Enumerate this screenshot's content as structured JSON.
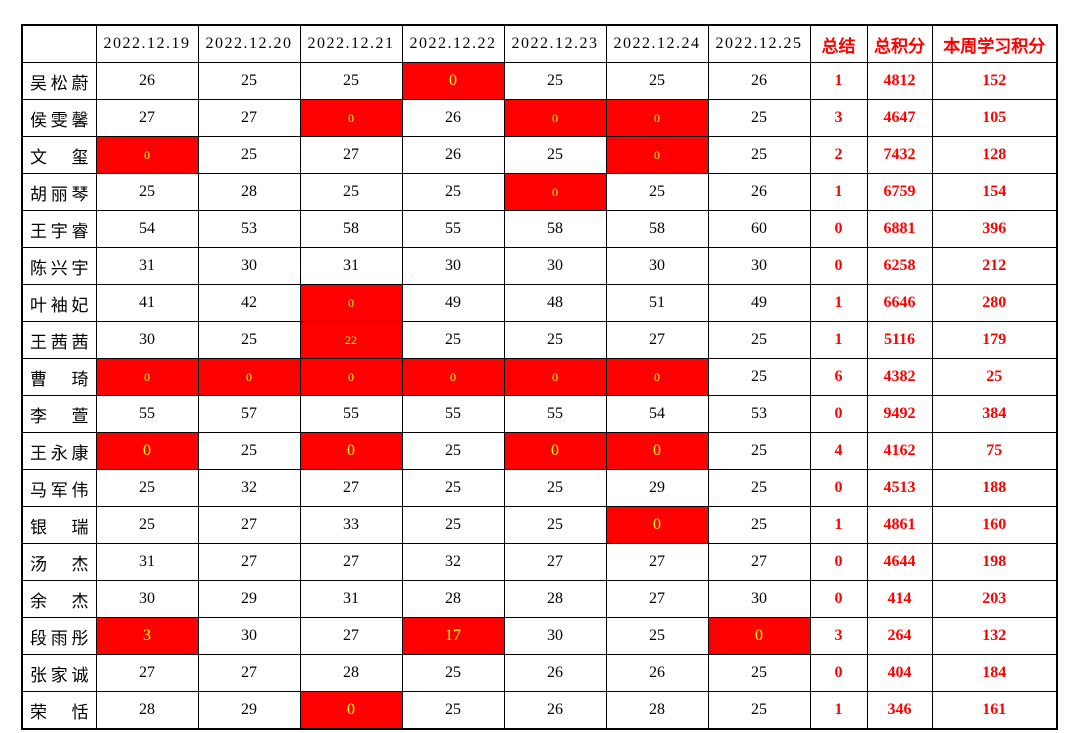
{
  "colors": {
    "highlight_fill": "#ff0000",
    "highlight_text": "#ffff00",
    "accent_red_text": "#ff0000",
    "normal_text": "#000000",
    "border": "#000000",
    "background": "#ffffff"
  },
  "chart_data": {
    "type": "table",
    "columns": [
      "",
      "2022.12.19",
      "2022.12.20",
      "2022.12.21",
      "2022.12.22",
      "2022.12.23",
      "2022.12.24",
      "2022.12.25",
      "总结",
      "总积分",
      "本周学习积分"
    ],
    "rows": [
      {
        "name": "吴松蔚",
        "days": [
          {
            "v": "26"
          },
          {
            "v": "25"
          },
          {
            "v": "25"
          },
          {
            "v": "0",
            "hl": true
          },
          {
            "v": "25"
          },
          {
            "v": "25"
          },
          {
            "v": "26"
          }
        ],
        "summary": "1",
        "total": "4812",
        "week": "152"
      },
      {
        "name": "侯雯馨",
        "days": [
          {
            "v": "27"
          },
          {
            "v": "27"
          },
          {
            "v": "0",
            "hl": true,
            "sm": true
          },
          {
            "v": "26"
          },
          {
            "v": "0",
            "hl": true,
            "sm": true
          },
          {
            "v": "0",
            "hl": true,
            "sm": true
          },
          {
            "v": "25"
          }
        ],
        "summary": "3",
        "total": "4647",
        "week": "105"
      },
      {
        "name": "文玺",
        "days": [
          {
            "v": "0",
            "hl": true,
            "sm": true
          },
          {
            "v": "25"
          },
          {
            "v": "27"
          },
          {
            "v": "26"
          },
          {
            "v": "25"
          },
          {
            "v": "0",
            "hl": true,
            "sm": true
          },
          {
            "v": "25"
          }
        ],
        "summary": "2",
        "total": "7432",
        "week": "128"
      },
      {
        "name": "胡丽琴",
        "days": [
          {
            "v": "25"
          },
          {
            "v": "28"
          },
          {
            "v": "25"
          },
          {
            "v": "25"
          },
          {
            "v": "0",
            "hl": true,
            "sm": true
          },
          {
            "v": "25"
          },
          {
            "v": "26"
          }
        ],
        "summary": "1",
        "total": "6759",
        "week": "154"
      },
      {
        "name": "王宇睿",
        "days": [
          {
            "v": "54"
          },
          {
            "v": "53"
          },
          {
            "v": "58"
          },
          {
            "v": "55"
          },
          {
            "v": "58"
          },
          {
            "v": "58"
          },
          {
            "v": "60"
          }
        ],
        "summary": "0",
        "total": "6881",
        "week": "396"
      },
      {
        "name": "陈兴宇",
        "days": [
          {
            "v": "31"
          },
          {
            "v": "30"
          },
          {
            "v": "31"
          },
          {
            "v": "30"
          },
          {
            "v": "30"
          },
          {
            "v": "30"
          },
          {
            "v": "30"
          }
        ],
        "summary": "0",
        "total": "6258",
        "week": "212"
      },
      {
        "name": "叶袖妃",
        "days": [
          {
            "v": "41"
          },
          {
            "v": "42"
          },
          {
            "v": "0",
            "hl": true,
            "sm": true
          },
          {
            "v": "49"
          },
          {
            "v": "48"
          },
          {
            "v": "51"
          },
          {
            "v": "49"
          }
        ],
        "summary": "1",
        "total": "6646",
        "week": "280"
      },
      {
        "name": "王茜茜",
        "days": [
          {
            "v": "30"
          },
          {
            "v": "25"
          },
          {
            "v": "22",
            "hl": true,
            "sm": true
          },
          {
            "v": "25"
          },
          {
            "v": "25"
          },
          {
            "v": "27"
          },
          {
            "v": "25"
          }
        ],
        "summary": "1",
        "total": "5116",
        "week": "179"
      },
      {
        "name": "曹琦",
        "days": [
          {
            "v": "0",
            "hl": true,
            "sm": true
          },
          {
            "v": "0",
            "hl": true,
            "sm": true
          },
          {
            "v": "0",
            "hl": true,
            "sm": true
          },
          {
            "v": "0",
            "hl": true,
            "sm": true
          },
          {
            "v": "0",
            "hl": true,
            "sm": true
          },
          {
            "v": "0",
            "hl": true,
            "sm": true
          },
          {
            "v": "25"
          }
        ],
        "summary": "6",
        "total": "4382",
        "week": "25"
      },
      {
        "name": "李萱",
        "days": [
          {
            "v": "55"
          },
          {
            "v": "57"
          },
          {
            "v": "55"
          },
          {
            "v": "55"
          },
          {
            "v": "55"
          },
          {
            "v": "54"
          },
          {
            "v": "53"
          }
        ],
        "summary": "0",
        "total": "9492",
        "week": "384"
      },
      {
        "name": "王永康",
        "days": [
          {
            "v": "0",
            "hl": true
          },
          {
            "v": "25"
          },
          {
            "v": "0",
            "hl": true
          },
          {
            "v": "25"
          },
          {
            "v": "0",
            "hl": true
          },
          {
            "v": "0",
            "hl": true
          },
          {
            "v": "25"
          }
        ],
        "summary": "4",
        "total": "4162",
        "week": "75"
      },
      {
        "name": "马军伟",
        "days": [
          {
            "v": "25"
          },
          {
            "v": "32"
          },
          {
            "v": "27"
          },
          {
            "v": "25"
          },
          {
            "v": "25"
          },
          {
            "v": "29"
          },
          {
            "v": "25"
          }
        ],
        "summary": "0",
        "total": "4513",
        "week": "188"
      },
      {
        "name": "银瑞",
        "days": [
          {
            "v": "25"
          },
          {
            "v": "27"
          },
          {
            "v": "33"
          },
          {
            "v": "25"
          },
          {
            "v": "25"
          },
          {
            "v": "0",
            "hl": true
          },
          {
            "v": "25"
          }
        ],
        "summary": "1",
        "total": "4861",
        "week": "160"
      },
      {
        "name": "汤杰",
        "days": [
          {
            "v": "31"
          },
          {
            "v": "27"
          },
          {
            "v": "27"
          },
          {
            "v": "32"
          },
          {
            "v": "27"
          },
          {
            "v": "27"
          },
          {
            "v": "27"
          }
        ],
        "summary": "0",
        "total": "4644",
        "week": "198"
      },
      {
        "name": "余杰",
        "days": [
          {
            "v": "30"
          },
          {
            "v": "29"
          },
          {
            "v": "31"
          },
          {
            "v": "28"
          },
          {
            "v": "28"
          },
          {
            "v": "27"
          },
          {
            "v": "30"
          }
        ],
        "summary": "0",
        "total": "414",
        "week": "203"
      },
      {
        "name": "段雨彤",
        "days": [
          {
            "v": "3",
            "hl": true
          },
          {
            "v": "30"
          },
          {
            "v": "27"
          },
          {
            "v": "17",
            "hl": true
          },
          {
            "v": "30"
          },
          {
            "v": "25"
          },
          {
            "v": "0",
            "hl": true
          }
        ],
        "summary": "3",
        "total": "264",
        "week": "132"
      },
      {
        "name": "张家诚",
        "days": [
          {
            "v": "27"
          },
          {
            "v": "27"
          },
          {
            "v": "28"
          },
          {
            "v": "25"
          },
          {
            "v": "26"
          },
          {
            "v": "26"
          },
          {
            "v": "25"
          }
        ],
        "summary": "0",
        "total": "404",
        "week": "184"
      },
      {
        "name": "荣恬",
        "days": [
          {
            "v": "28"
          },
          {
            "v": "29"
          },
          {
            "v": "0",
            "hl": true
          },
          {
            "v": "25"
          },
          {
            "v": "26"
          },
          {
            "v": "28"
          },
          {
            "v": "25"
          }
        ],
        "summary": "1",
        "total": "346",
        "week": "161"
      }
    ]
  }
}
